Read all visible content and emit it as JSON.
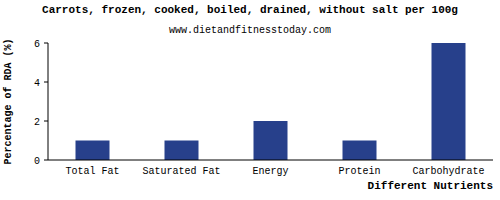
{
  "chart_data": {
    "type": "bar",
    "title": "Carrots, frozen, cooked, boiled, drained, without salt per 100g",
    "subtitle": "www.dietandfitnesstoday.com",
    "x_label": "Different Nutrients",
    "y_label": "Percentage of RDA (%)",
    "categories": [
      "Total Fat",
      "Saturated Fat",
      "Energy",
      "Protein",
      "Carbohydrate"
    ],
    "values": [
      1,
      1,
      2,
      1,
      6
    ],
    "color": "#27408b",
    "ylim": [
      0,
      6
    ],
    "yticks": [
      0,
      2,
      4,
      6
    ],
    "grid": false
  }
}
